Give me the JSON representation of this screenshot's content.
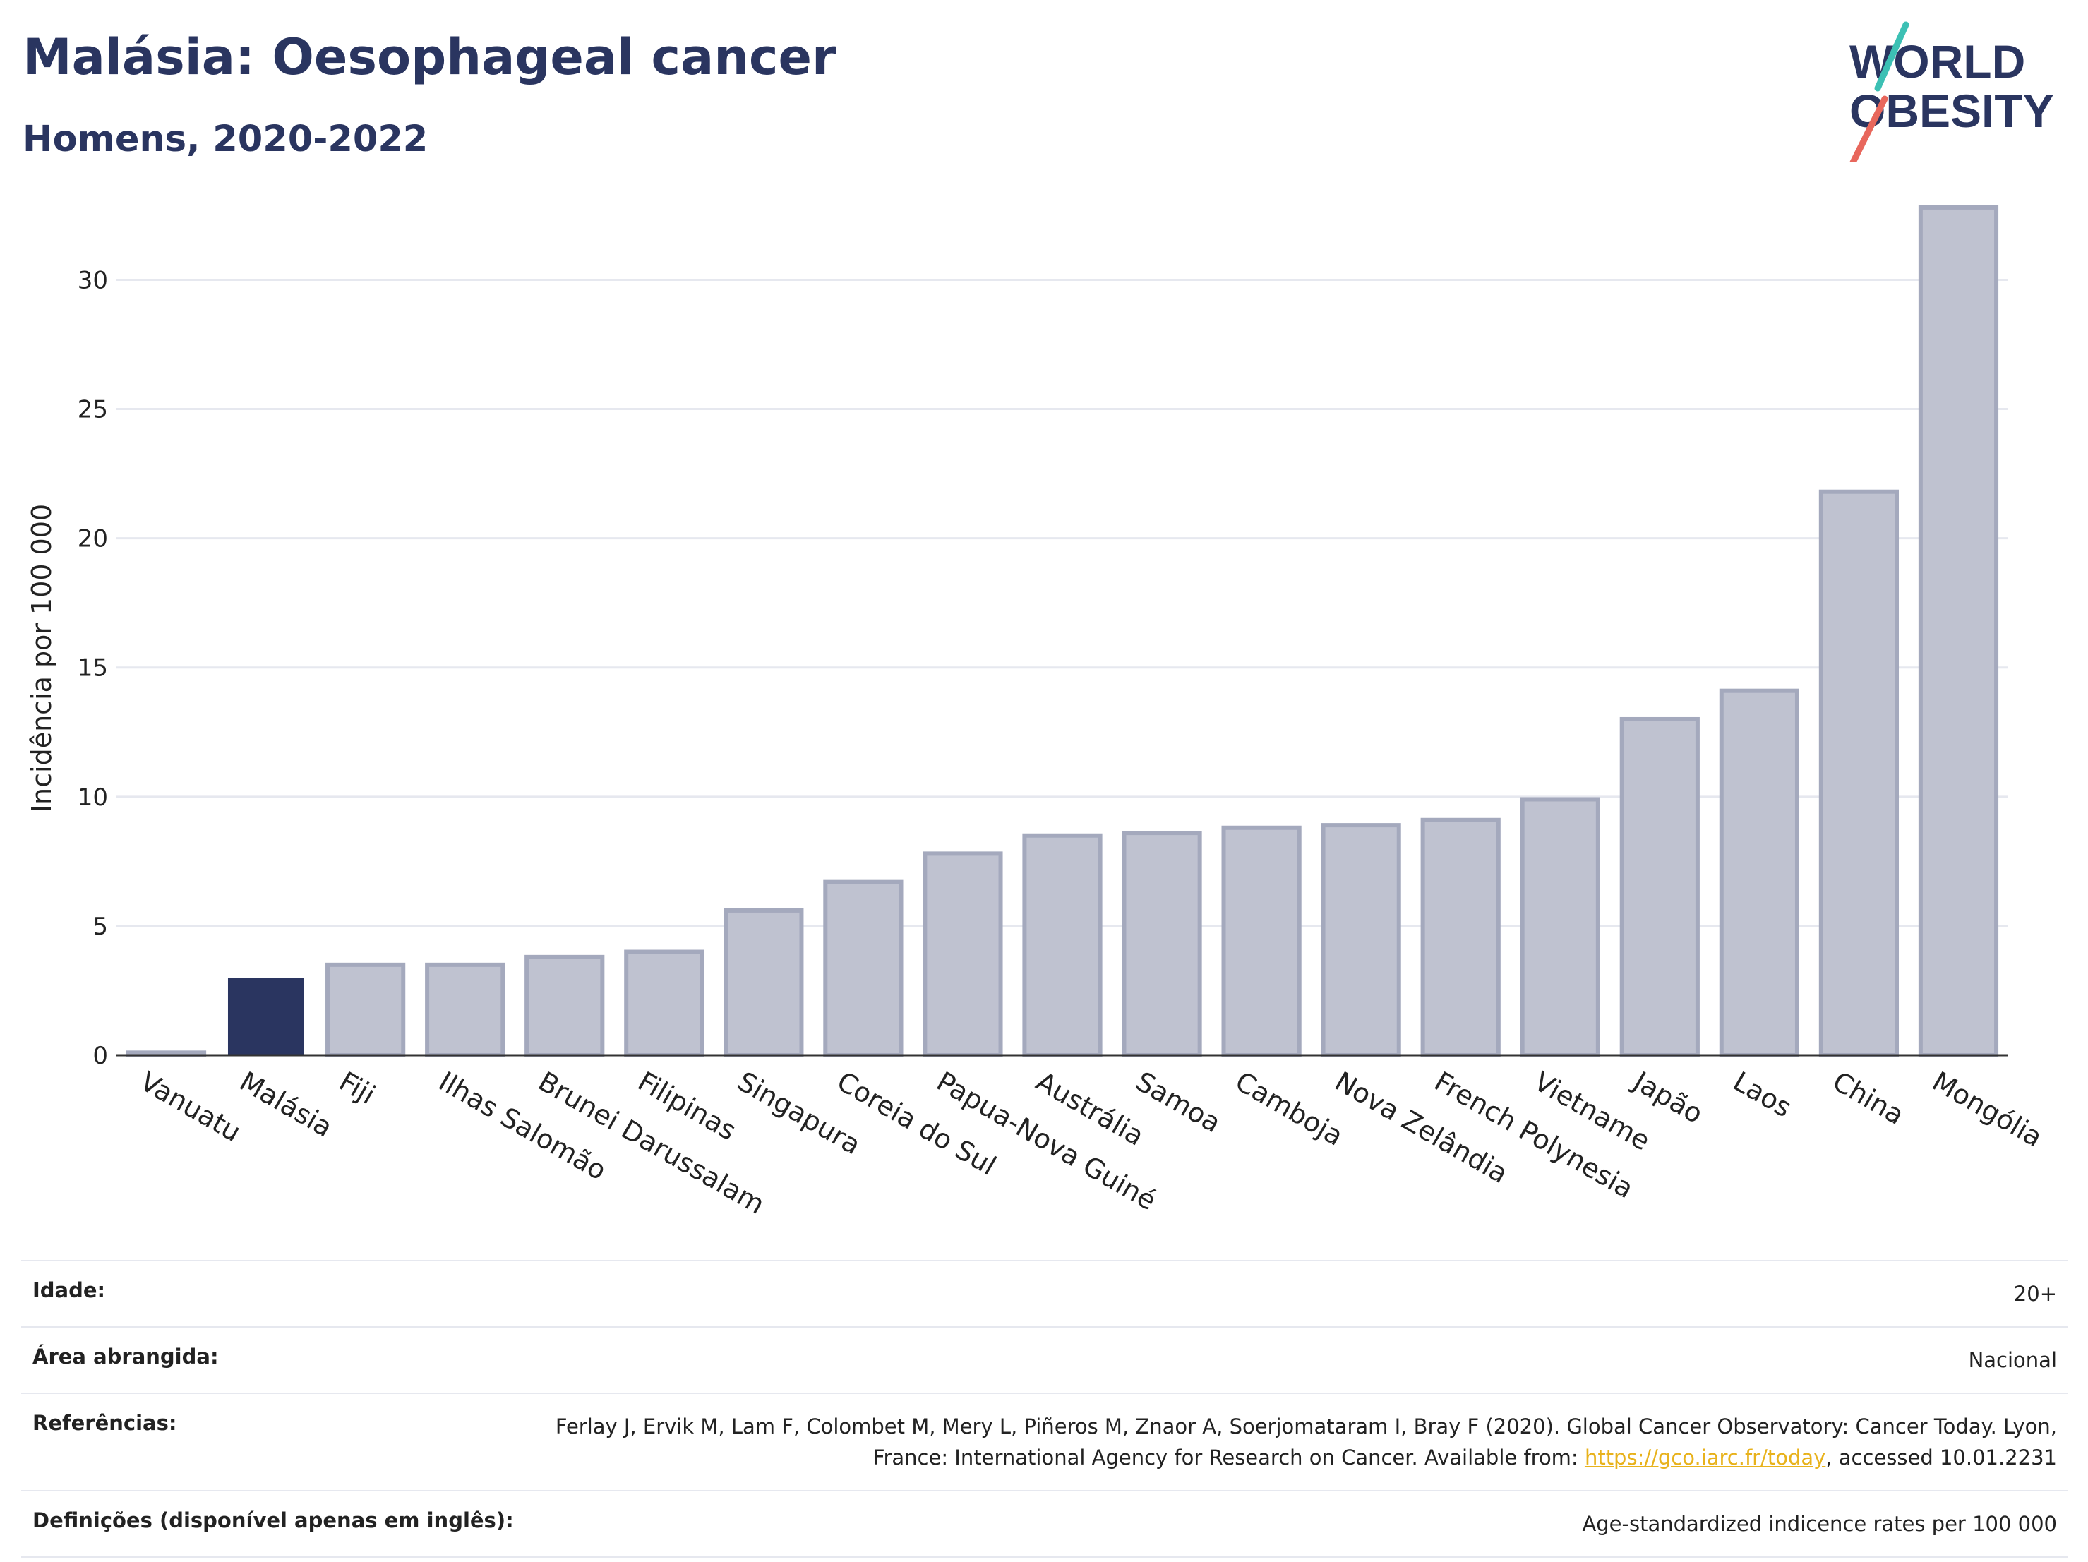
{
  "header": {
    "title": "Malásia: Oesophageal cancer",
    "subtitle": "Homens, 2020-2022"
  },
  "logo": {
    "line1": "WORLD",
    "line2": "OBESITY"
  },
  "colors": {
    "highlight": "#2a3560",
    "bar_fill": "#bfc2d0",
    "bar_stroke": "#a4a9bd",
    "accent_teal": "#3cc0b4",
    "accent_red": "#e8675c",
    "link": "#e8b21c"
  },
  "chart_data": {
    "type": "bar",
    "title": "Malásia: Oesophageal cancer",
    "subtitle": "Homens, 2020-2022",
    "ylabel": "Incidência por 100 000",
    "xlabel": "",
    "ylim": [
      0,
      34
    ],
    "yticks": [
      0,
      5,
      10,
      15,
      20,
      25,
      30
    ],
    "grid": true,
    "highlight": "Malásia",
    "categories": [
      "Vanuatu",
      "Malásia",
      "Fiji",
      "Ilhas Salomão",
      "Brunei Darussalam",
      "Filipinas",
      "Singapura",
      "Coreia do Sul",
      "Papua-Nova Guiné",
      "Austrália",
      "Samoa",
      "Camboja",
      "Nova Zelândia",
      "French Polynesia",
      "Vietname",
      "Japão",
      "Laos",
      "China",
      "Mongólia"
    ],
    "values": [
      0.1,
      3.0,
      3.5,
      3.5,
      3.8,
      4.0,
      5.6,
      6.7,
      7.8,
      8.5,
      8.6,
      8.8,
      8.9,
      9.1,
      9.9,
      13.0,
      14.1,
      21.8,
      32.8
    ]
  },
  "info": {
    "age_label": "Idade:",
    "age_value": "20+",
    "area_label": "Área abrangida:",
    "area_value": "Nacional",
    "ref_label": "Referências:",
    "ref_text1": "Ferlay J, Ervik M, Lam F, Colombet M, Mery L, Piñeros M, Znaor A, Soerjomataram I, Bray F (2020). Global Cancer Observatory: Cancer Today. Lyon, France: International Agency for Research on Cancer. Available from: ",
    "ref_link": "https://gco.iarc.fr/today",
    "ref_text2": ", accessed 10.01.2231",
    "def_label": "Definições (disponível apenas em inglês):",
    "def_value": "Age-standardized indicence rates per 100 000"
  }
}
